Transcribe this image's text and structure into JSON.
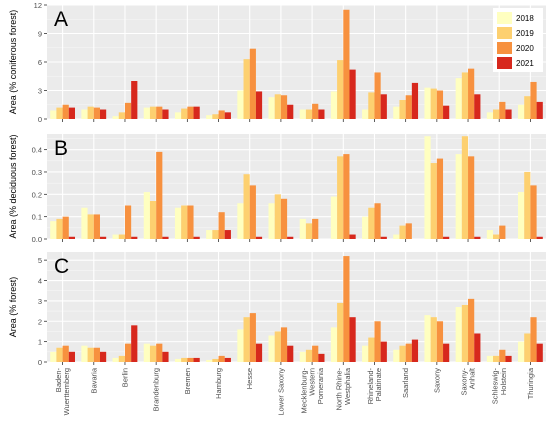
{
  "legend": {
    "items": [
      {
        "label": "2018",
        "color": "#ffffc0"
      },
      {
        "label": "2019",
        "color": "#fdd070"
      },
      {
        "label": "2020",
        "color": "#f7913f"
      },
      {
        "label": "2021",
        "color": "#d7281d"
      }
    ]
  },
  "chart_data": [
    {
      "type": "bar",
      "panel_label": "A",
      "ylabel": "Area (% coniferous forest)",
      "ylim": [
        0,
        12
      ],
      "yticks": [
        "0",
        "3",
        "6",
        "9",
        "12"
      ],
      "ytick_values": [
        0,
        3,
        6,
        9,
        12
      ],
      "grid": true,
      "legend_position": "top-right",
      "series": [
        {
          "name": "2018",
          "values": [
            0.9,
            1.0,
            0.3,
            1.2,
            0.7,
            0.4,
            3.0,
            2.3,
            1.0,
            2.9,
            1.0,
            1.3,
            3.3,
            4.3,
            0.7,
            1.5
          ]
        },
        {
          "name": "2019",
          "values": [
            1.2,
            1.3,
            0.7,
            1.3,
            1.1,
            0.5,
            6.3,
            2.6,
            1.0,
            6.2,
            2.8,
            2.0,
            3.2,
            4.9,
            1.0,
            2.4
          ]
        },
        {
          "name": "2020",
          "values": [
            1.5,
            1.2,
            1.7,
            1.3,
            1.3,
            0.9,
            7.4,
            2.5,
            1.6,
            11.5,
            4.9,
            2.5,
            3.0,
            5.3,
            1.8,
            3.9
          ]
        },
        {
          "name": "2021",
          "values": [
            1.2,
            1.0,
            4.0,
            1.0,
            1.3,
            0.7,
            2.9,
            1.5,
            1.0,
            5.2,
            2.6,
            3.8,
            1.4,
            2.6,
            1.0,
            1.8
          ]
        }
      ]
    },
    {
      "type": "bar",
      "panel_label": "B",
      "ylabel": "Area (% deciduous forest)",
      "ylim": [
        0,
        0.47
      ],
      "yticks": [
        "0.0",
        "0.1",
        "0.2",
        "0.3",
        "0.4"
      ],
      "ytick_values": [
        0,
        0.1,
        0.2,
        0.3,
        0.4
      ],
      "grid": true,
      "series": [
        {
          "name": "2018",
          "values": [
            0.08,
            0.14,
            0.02,
            0.21,
            0.14,
            0.04,
            0.16,
            0.16,
            0.09,
            0.19,
            0.1,
            0.02,
            0.46,
            0.38,
            0.04,
            0.21
          ]
        },
        {
          "name": "2019",
          "values": [
            0.09,
            0.11,
            0.02,
            0.17,
            0.15,
            0.04,
            0.29,
            0.2,
            0.07,
            0.37,
            0.14,
            0.06,
            0.34,
            0.46,
            0.02,
            0.3
          ]
        },
        {
          "name": "2020",
          "values": [
            0.1,
            0.11,
            0.15,
            0.39,
            0.15,
            0.12,
            0.24,
            0.18,
            0.09,
            0.38,
            0.16,
            0.07,
            0.36,
            0.37,
            0.06,
            0.24
          ]
        },
        {
          "name": "2021",
          "values": [
            0.01,
            0.01,
            0.01,
            0.01,
            0.01,
            0.04,
            0.01,
            0.01,
            0.0,
            0.02,
            0.01,
            0.0,
            0.01,
            0.01,
            0.0,
            0.01
          ]
        }
      ]
    },
    {
      "type": "bar",
      "panel_label": "C",
      "ylabel": "Area (% forest)",
      "ylim": [
        0,
        5.4
      ],
      "yticks": [
        "0",
        "1",
        "2",
        "3",
        "4",
        "5"
      ],
      "ytick_values": [
        0,
        1,
        2,
        3,
        4,
        5
      ],
      "grid": true,
      "categories": [
        "Baden-\nWuerttemberg",
        "Bavaria",
        "Berlin",
        "Brandenburg",
        "Bremen",
        "Hamburg",
        "Hesse",
        "Lower Saxony",
        "Mecklenburg-\nWestern\nPomerania",
        "North Rhine-\nWestphalia",
        "Rhineland-\nPalatinate",
        "Saarland",
        "Saxony",
        "Saxony-\nAnhalt",
        "Schleswig-\nHolstein",
        "Thuringia"
      ],
      "series": [
        {
          "name": "2018",
          "values": [
            0.5,
            0.8,
            0.2,
            0.9,
            0.15,
            0.1,
            1.6,
            1.3,
            0.5,
            1.7,
            0.8,
            0.6,
            2.3,
            2.7,
            0.3,
            1.0
          ]
        },
        {
          "name": "2019",
          "values": [
            0.7,
            0.7,
            0.3,
            0.8,
            0.2,
            0.15,
            2.2,
            1.5,
            0.6,
            2.9,
            1.2,
            0.8,
            2.2,
            2.8,
            0.3,
            1.4
          ]
        },
        {
          "name": "2020",
          "values": [
            0.8,
            0.7,
            0.9,
            0.9,
            0.2,
            0.3,
            2.4,
            1.7,
            0.8,
            5.2,
            2.0,
            0.9,
            2.0,
            3.1,
            0.6,
            2.2
          ]
        },
        {
          "name": "2021",
          "values": [
            0.5,
            0.5,
            1.8,
            0.5,
            0.2,
            0.2,
            0.9,
            0.8,
            0.4,
            2.2,
            1.0,
            1.1,
            0.9,
            1.4,
            0.3,
            0.9
          ]
        }
      ]
    }
  ]
}
